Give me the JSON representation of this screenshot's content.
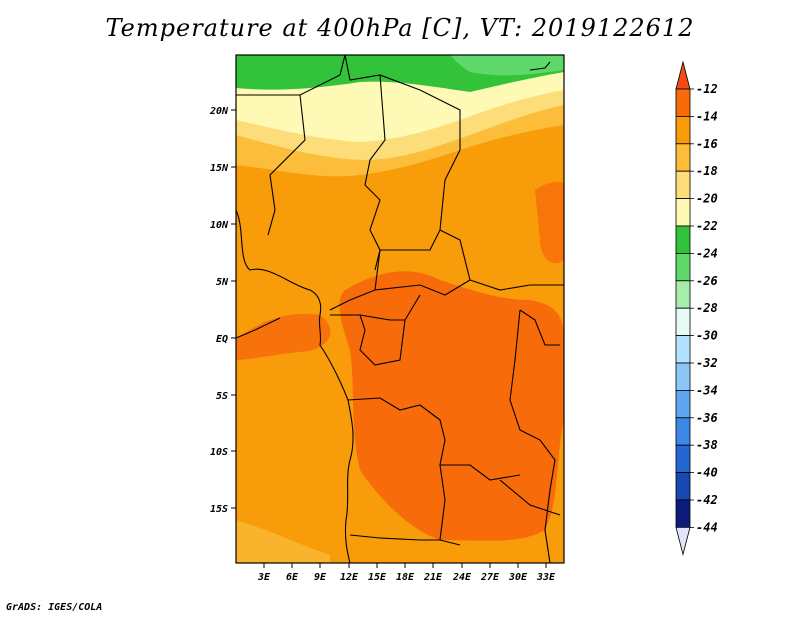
{
  "title": "Temperature at 400hPa [C], VT: 2019122612",
  "credit": "GrADS: IGES/COLA",
  "map": {
    "lat_labels": [
      "20N",
      "15N",
      "10N",
      "5N",
      "EQ",
      "5S",
      "10S",
      "15S"
    ],
    "lon_labels": [
      "3E",
      "6E",
      "9E",
      "12E",
      "15E",
      "18E",
      "21E",
      "24E",
      "27E",
      "30E",
      "33E"
    ]
  },
  "colorbar": {
    "labels": [
      "-12",
      "-14",
      "-16",
      "-18",
      "-20",
      "-22",
      "-24",
      "-26",
      "-28",
      "-30",
      "-32",
      "-34",
      "-36",
      "-38",
      "-40",
      "-42",
      "-44"
    ],
    "colors": [
      "#f44a14",
      "#f76b0a",
      "#f99c0a",
      "#fbbd3a",
      "#fcdd7a",
      "#fef9b4",
      "#33c33a",
      "#5fd86a",
      "#a6ecaa",
      "#e6fbf6",
      "#b3e2ff",
      "#8bc6f7",
      "#5ea6ef",
      "#3b88e6",
      "#2566d2",
      "#1848b0",
      "#0c1c7c",
      "#e4e4f8"
    ]
  }
}
